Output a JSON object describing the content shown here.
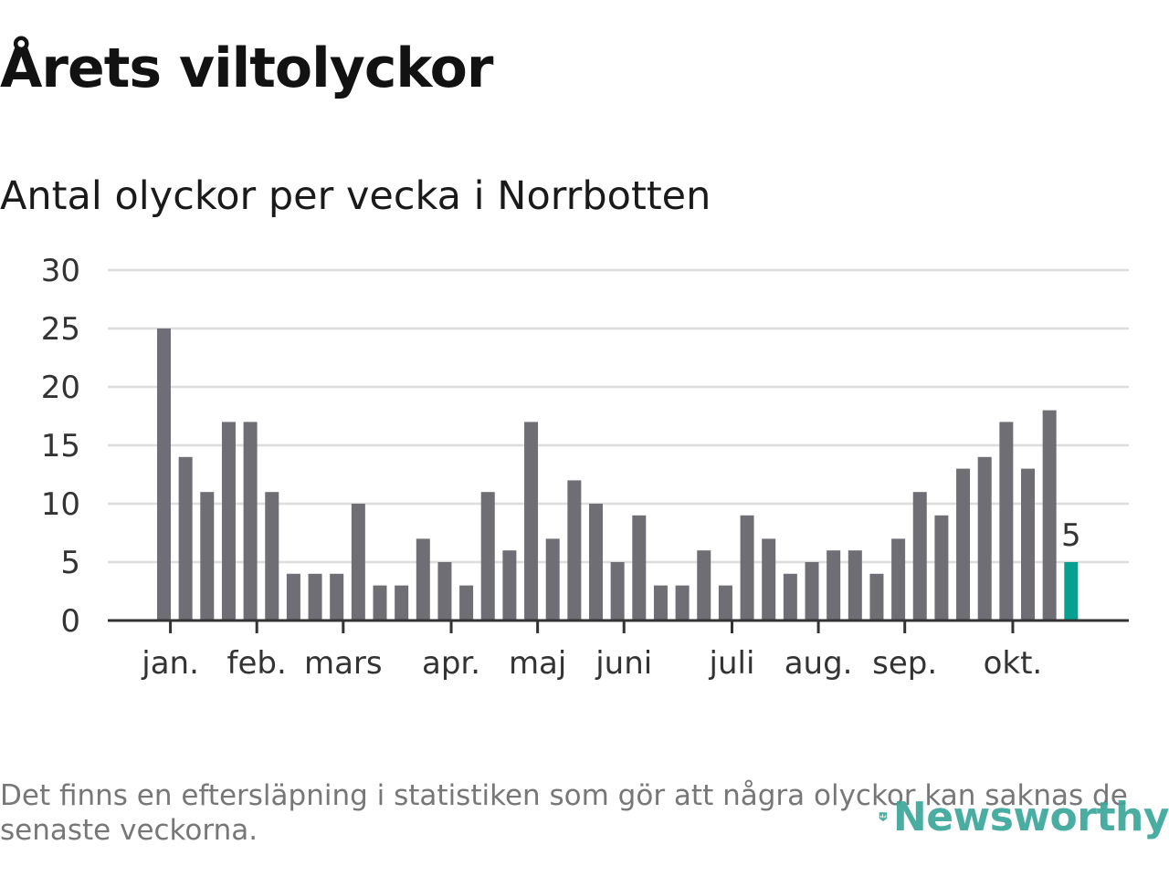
{
  "title": "Årets viltolyckor",
  "subtitle": "Antal olyckor per vecka i Norrbotten",
  "footnote": "Det finns en eftersläpning i statistiken som gör att några olyckor kan saknas de senaste veckorna.",
  "logo": {
    "text": "Newsworthy",
    "icon": "newsworthy-logo-icon",
    "color": "#3aa89a"
  },
  "chart_data": {
    "type": "bar",
    "title": "Antal olyckor per vecka i Norrbotten",
    "xlabel": "",
    "ylabel": "",
    "ylim": [
      0,
      30
    ],
    "yticks": [
      0,
      5,
      10,
      15,
      20,
      25,
      30
    ],
    "grid": true,
    "bar_color": "#6f6e74",
    "highlight_color": "#05a092",
    "highlight_index": 42,
    "highlight_label": "5",
    "values": [
      25,
      14,
      11,
      17,
      17,
      11,
      4,
      4,
      4,
      10,
      3,
      3,
      7,
      5,
      3,
      11,
      6,
      17,
      7,
      12,
      10,
      5,
      9,
      3,
      3,
      6,
      3,
      9,
      7,
      4,
      5,
      6,
      6,
      4,
      7,
      11,
      9,
      13,
      14,
      17,
      13,
      18,
      5
    ],
    "month_labels": [
      {
        "label": "jan.",
        "week_index": 0.3
      },
      {
        "label": "feb.",
        "week_index": 4.3
      },
      {
        "label": "mars",
        "week_index": 8.3
      },
      {
        "label": "apr.",
        "week_index": 13.3
      },
      {
        "label": "maj",
        "week_index": 17.3
      },
      {
        "label": "juni",
        "week_index": 21.3
      },
      {
        "label": "juli",
        "week_index": 26.3
      },
      {
        "label": "aug.",
        "week_index": 30.3
      },
      {
        "label": "sep.",
        "week_index": 34.3
      },
      {
        "label": "okt.",
        "week_index": 39.3
      }
    ]
  }
}
